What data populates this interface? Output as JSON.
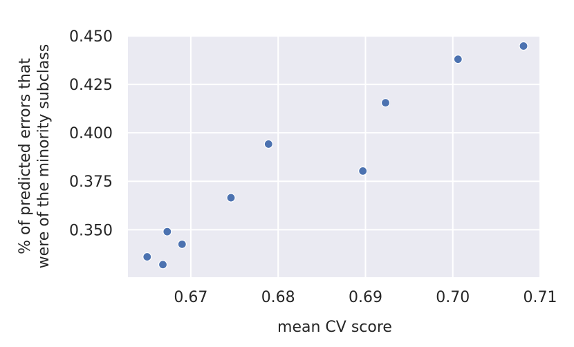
{
  "chart_data": {
    "type": "scatter",
    "title": "",
    "xlabel": "mean CV score",
    "ylabel": [
      "% of predicted errors that",
      "were of the minority subclass"
    ],
    "xlim": [
      0.6628,
      0.71
    ],
    "ylim": [
      0.3255,
      0.45
    ],
    "xticks": [
      0.67,
      0.68,
      0.69,
      0.7,
      0.71
    ],
    "xtick_labels": [
      "0.67",
      "0.68",
      "0.69",
      "0.70",
      "0.71"
    ],
    "yticks": [
      0.35,
      0.375,
      0.4,
      0.425,
      0.45
    ],
    "ytick_labels": [
      "0.350",
      "0.375",
      "0.400",
      "0.425",
      "0.450"
    ],
    "grid": true,
    "background_color": "#eaeaf2",
    "grid_color": "#ffffff",
    "marker_color": "#4c72b0",
    "points": [
      {
        "x": 0.665,
        "y": 0.336
      },
      {
        "x": 0.6668,
        "y": 0.332
      },
      {
        "x": 0.6673,
        "y": 0.349
      },
      {
        "x": 0.669,
        "y": 0.3425
      },
      {
        "x": 0.6746,
        "y": 0.3665
      },
      {
        "x": 0.6789,
        "y": 0.3942
      },
      {
        "x": 0.6897,
        "y": 0.3803
      },
      {
        "x": 0.6923,
        "y": 0.4155
      },
      {
        "x": 0.7006,
        "y": 0.438
      },
      {
        "x": 0.7081,
        "y": 0.4448
      }
    ]
  }
}
